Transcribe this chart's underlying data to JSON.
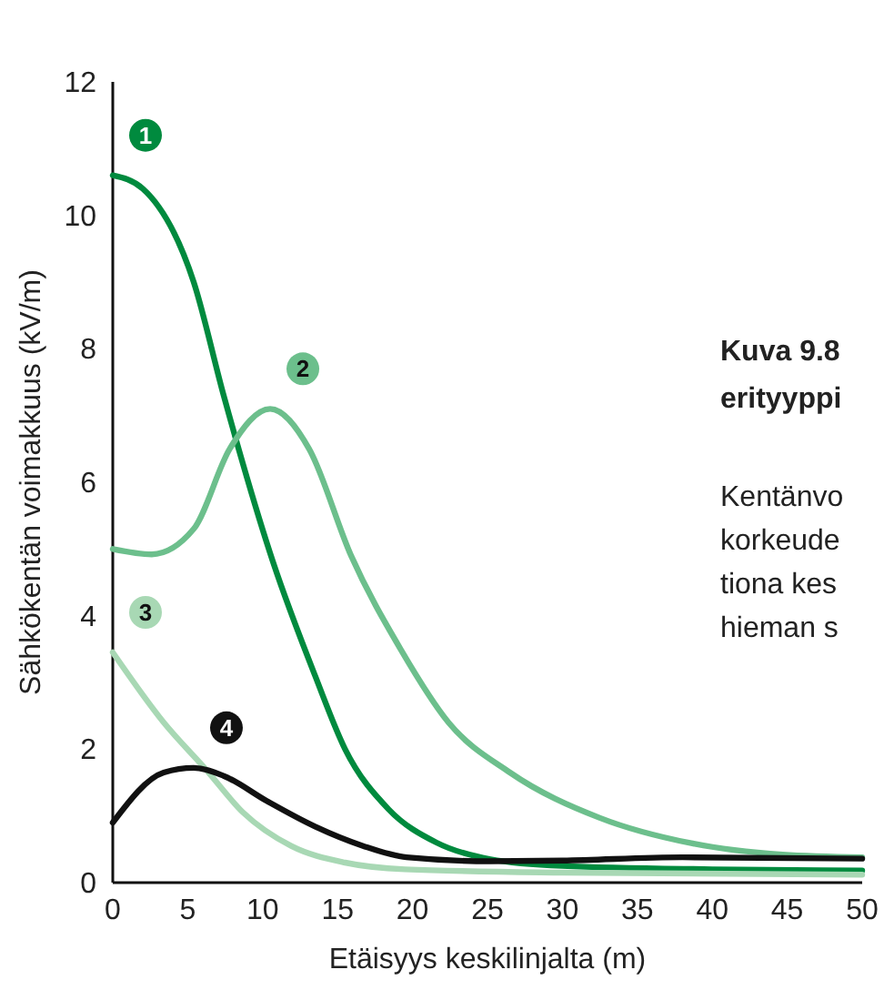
{
  "chart_data": {
    "type": "line",
    "xlabel": "Etäisyys keskilinjalta (m)",
    "ylabel": "Sähkökentän voimakkuus (kV/m)",
    "xlim": [
      0,
      50
    ],
    "ylim": [
      0,
      12
    ],
    "xticks": [
      0,
      5,
      10,
      15,
      20,
      25,
      30,
      35,
      40,
      45,
      50
    ],
    "yticks": [
      0,
      2,
      4,
      6,
      8,
      10,
      12
    ],
    "grid": false,
    "marker": "none",
    "line_style": "solid",
    "series": [
      {
        "name": "1",
        "color": "#008a3e",
        "x": [
          0,
          2,
          5.4,
          7.4,
          10.7,
          13.5,
          15.5,
          18.4,
          21.6,
          25.2,
          30,
          40,
          50
        ],
        "values": [
          10.6,
          10.4,
          9.0,
          7.3,
          4.8,
          3.1,
          2.0,
          1.1,
          0.6,
          0.35,
          0.25,
          0.2,
          0.18
        ]
      },
      {
        "name": "2",
        "color": "#6cbf8c",
        "x": [
          0,
          2.6,
          5.4,
          7.8,
          10.5,
          13.1,
          15.9,
          19.2,
          22.4,
          26.5,
          32.5,
          38.6,
          44.7,
          50
        ],
        "values": [
          5.0,
          4.92,
          5.3,
          6.5,
          7.1,
          6.5,
          4.9,
          3.5,
          2.4,
          1.65,
          0.97,
          0.59,
          0.42,
          0.38
        ]
      },
      {
        "name": "3",
        "color": "#a8d8b4",
        "x": [
          0,
          3.4,
          6.2,
          8.7,
          11.9,
          15.5,
          19.5,
          30,
          50
        ],
        "values": [
          3.45,
          2.4,
          1.7,
          1.05,
          0.55,
          0.3,
          0.2,
          0.15,
          0.12
        ]
      },
      {
        "name": "4",
        "color": "#111111",
        "x": [
          0,
          3.4,
          5.4,
          7.4,
          10.3,
          13.5,
          16.7,
          19.6,
          25.2,
          30,
          38,
          50
        ],
        "values": [
          0.9,
          1.65,
          1.72,
          1.6,
          1.22,
          0.84,
          0.55,
          0.38,
          0.32,
          0.33,
          0.38,
          0.36
        ]
      }
    ],
    "annotations": [
      "Kuva 9.8",
      "erityyppi",
      "Kentänvo",
      "korkeude",
      "tiona kes",
      "hieman s"
    ]
  }
}
